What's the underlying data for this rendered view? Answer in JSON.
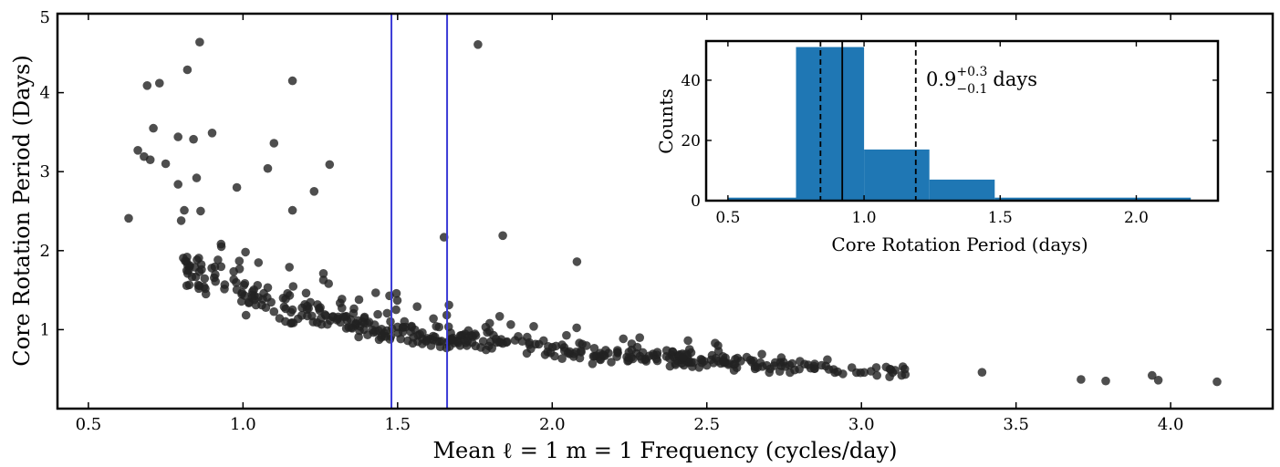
{
  "chart_data": [
    {
      "type": "scatter",
      "title": "",
      "xlabel": "Mean ℓ = 1 m = 1 Frequency (cycles/day)",
      "ylabel": "Core Rotation Period (Days)",
      "xlim": [
        0.4,
        4.33
      ],
      "ylim": [
        0,
        5
      ],
      "xticks": [
        "0.5",
        "1.0",
        "1.5",
        "2.0",
        "2.5",
        "3.0",
        "3.5",
        "4.0"
      ],
      "yticks": [
        "1",
        "2",
        "3",
        "4",
        "5"
      ],
      "point_color": "#222222",
      "vlines": {
        "color": "#3b3bd6",
        "x": [
          1.48,
          1.66
        ]
      },
      "outliers": [
        [
          0.63,
          2.41
        ],
        [
          0.66,
          3.27
        ],
        [
          0.68,
          3.19
        ],
        [
          0.69,
          4.09
        ],
        [
          0.7,
          3.15
        ],
        [
          0.71,
          3.55
        ],
        [
          0.73,
          4.12
        ],
        [
          0.75,
          3.1
        ],
        [
          0.79,
          2.84
        ],
        [
          0.79,
          3.44
        ],
        [
          0.8,
          2.38
        ],
        [
          0.81,
          2.51
        ],
        [
          0.82,
          4.29
        ],
        [
          0.84,
          3.41
        ],
        [
          0.85,
          2.92
        ],
        [
          0.86,
          4.64
        ],
        [
          0.9,
          3.49
        ],
        [
          0.98,
          2.8
        ],
        [
          1.08,
          3.04
        ],
        [
          1.1,
          3.36
        ],
        [
          1.16,
          4.15
        ],
        [
          1.16,
          2.51
        ],
        [
          1.23,
          2.75
        ],
        [
          1.28,
          3.09
        ],
        [
          1.65,
          2.17
        ],
        [
          1.76,
          4.61
        ],
        [
          1.84,
          2.19
        ],
        [
          2.08,
          1.86
        ],
        [
          2.94,
          0.44
        ],
        [
          3.05,
          0.42
        ],
        [
          3.13,
          0.42
        ],
        [
          3.39,
          0.46
        ],
        [
          3.71,
          0.37
        ],
        [
          3.79,
          0.35
        ],
        [
          3.94,
          0.42
        ],
        [
          3.96,
          0.36
        ],
        [
          4.15,
          0.34
        ]
      ]
    },
    {
      "type": "bar",
      "title": "",
      "xlabel": "Core Rotation Period (days)",
      "ylabel": "Counts",
      "xlim": [
        0.42,
        2.3
      ],
      "ylim": [
        0,
        53
      ],
      "xticks": [
        "0.5",
        "1.0",
        "1.5",
        "2.0"
      ],
      "yticks": [
        "0",
        "20",
        "40"
      ],
      "bar_color": "#1f77b4",
      "bins": [
        {
          "x0": 0.5,
          "x1": 0.75,
          "count": 1
        },
        {
          "x0": 0.75,
          "x1": 1.0,
          "count": 51
        },
        {
          "x0": 1.0,
          "x1": 1.24,
          "count": 17
        },
        {
          "x0": 1.24,
          "x1": 1.48,
          "count": 7
        },
        {
          "x0": 1.48,
          "x1": 2.2,
          "count": 1
        }
      ],
      "median": 0.92,
      "interval_lines": [
        0.84,
        1.19
      ],
      "annotation": {
        "base": "0.9",
        "sup": "+0.3",
        "sub": "−0.1",
        "unit": "days"
      }
    }
  ]
}
